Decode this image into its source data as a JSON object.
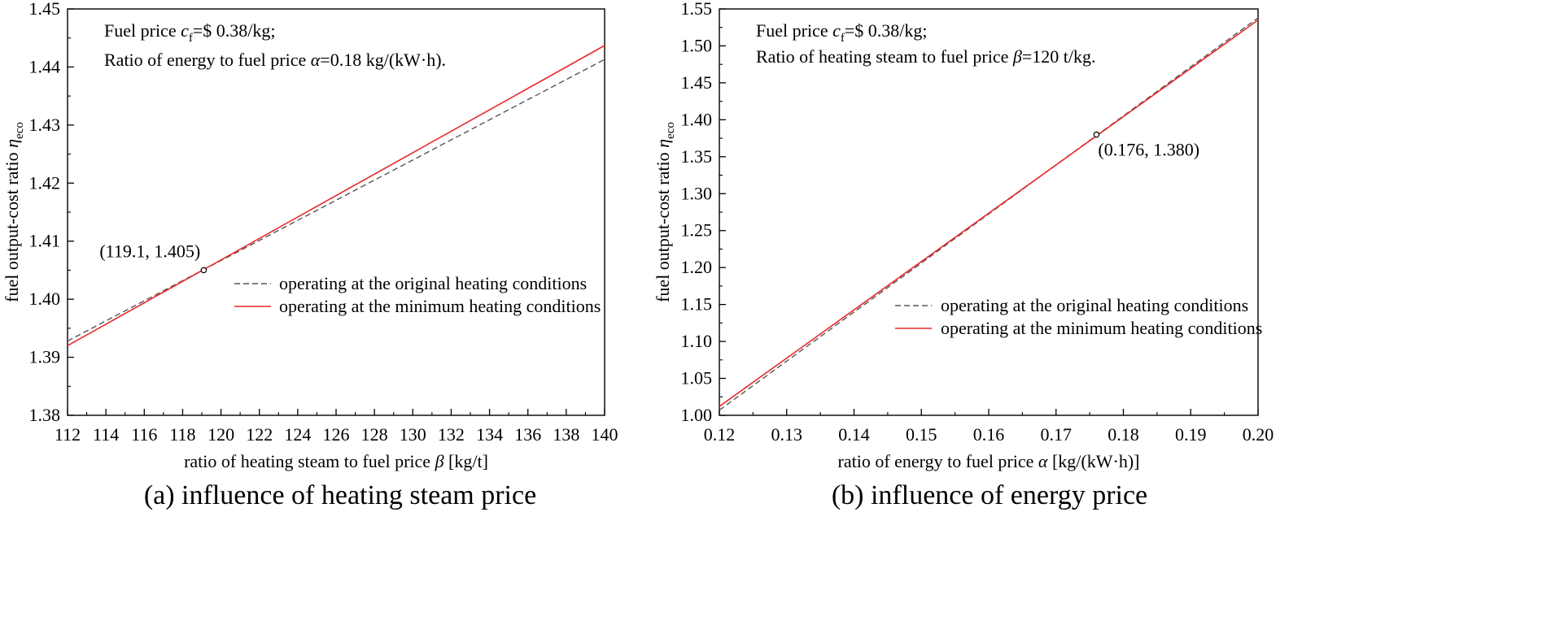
{
  "colors": {
    "original": "#555555",
    "minimum": "#e8282b",
    "axis": "#000000",
    "background": "#ffffff"
  },
  "chart_data": [
    {
      "type": "line",
      "caption": "(a) influence of heating steam price",
      "xlabel": "ratio of heating steam to fuel price",
      "xlabel_symbol": "β",
      "xlabel_unit": "[kg/t]",
      "ylabel": "fuel output-cost ratio",
      "ylabel_symbol": "η",
      "ylabel_sub": "eco",
      "xlim": [
        112,
        140
      ],
      "ylim": [
        1.38,
        1.45
      ],
      "xticks": [
        112,
        114,
        116,
        118,
        120,
        122,
        124,
        126,
        128,
        130,
        132,
        134,
        136,
        138,
        140
      ],
      "xtick_labels": [
        "112",
        "114",
        "116",
        "118",
        "120",
        "122",
        "124",
        "126",
        "128",
        "130",
        "132",
        "134",
        "136",
        "138",
        "140"
      ],
      "yticks": [
        1.38,
        1.39,
        1.4,
        1.41,
        1.42,
        1.43,
        1.44,
        1.45
      ],
      "ytick_labels": [
        "1.38",
        "1.39",
        "1.40",
        "1.41",
        "1.42",
        "1.43",
        "1.44",
        "1.45"
      ],
      "annotation_lines": [
        {
          "prefix": "Fuel price ",
          "symbol": "c",
          "sub": "f",
          "suffix": "=$ 0.38/kg;"
        },
        {
          "prefix": "Ratio of energy to fuel price ",
          "symbol": "α",
          "sub": "",
          "suffix": "=0.18 kg/(kW·h)."
        }
      ],
      "series": [
        {
          "name": "operating at the original heating conditions",
          "style": "dashed",
          "x": [
            112,
            140
          ],
          "y": [
            1.3928,
            1.4413
          ]
        },
        {
          "name": "operating at the minimum heating conditions",
          "style": "solid",
          "x": [
            112,
            140
          ],
          "y": [
            1.392,
            1.4437
          ]
        }
      ],
      "marked_point": {
        "x": 119.1,
        "y": 1.405,
        "label": "(119.1, 1.405)"
      },
      "legend_position": "center-right"
    },
    {
      "type": "line",
      "caption": "(b) influence of energy price",
      "xlabel": "ratio of energy to fuel price",
      "xlabel_symbol": "α",
      "xlabel_unit": "[kg/(kW·h)]",
      "ylabel": "fuel output-cost ratio",
      "ylabel_symbol": "η",
      "ylabel_sub": "eco",
      "xlim": [
        0.12,
        0.2
      ],
      "ylim": [
        1.0,
        1.55
      ],
      "xticks": [
        0.12,
        0.13,
        0.14,
        0.15,
        0.16,
        0.17,
        0.18,
        0.19,
        0.2
      ],
      "xtick_labels": [
        "0.12",
        "0.13",
        "0.14",
        "0.15",
        "0.16",
        "0.17",
        "0.18",
        "0.19",
        "0.20"
      ],
      "yticks": [
        1.0,
        1.05,
        1.1,
        1.15,
        1.2,
        1.25,
        1.3,
        1.35,
        1.4,
        1.45,
        1.5,
        1.55
      ],
      "ytick_labels": [
        "1.00",
        "1.05",
        "1.10",
        "1.15",
        "1.20",
        "1.25",
        "1.30",
        "1.35",
        "1.40",
        "1.45",
        "1.50",
        "1.55"
      ],
      "annotation_lines": [
        {
          "prefix": "Fuel price ",
          "symbol": "c",
          "sub": "f",
          "suffix": "=$ 0.38/kg;"
        },
        {
          "prefix": "Ratio of heating steam to fuel price ",
          "symbol": "β",
          "sub": "",
          "suffix": "=120 t/kg."
        }
      ],
      "series": [
        {
          "name": "operating at the original heating conditions",
          "style": "dashed",
          "x": [
            0.12,
            0.2
          ],
          "y": [
            1.007,
            1.538
          ]
        },
        {
          "name": "operating at the minimum heating conditions",
          "style": "solid",
          "x": [
            0.12,
            0.2
          ],
          "y": [
            1.012,
            1.535
          ]
        }
      ],
      "marked_point": {
        "x": 0.176,
        "y": 1.38,
        "label": "(0.176, 1.380)"
      },
      "legend_position": "lower-right"
    }
  ]
}
